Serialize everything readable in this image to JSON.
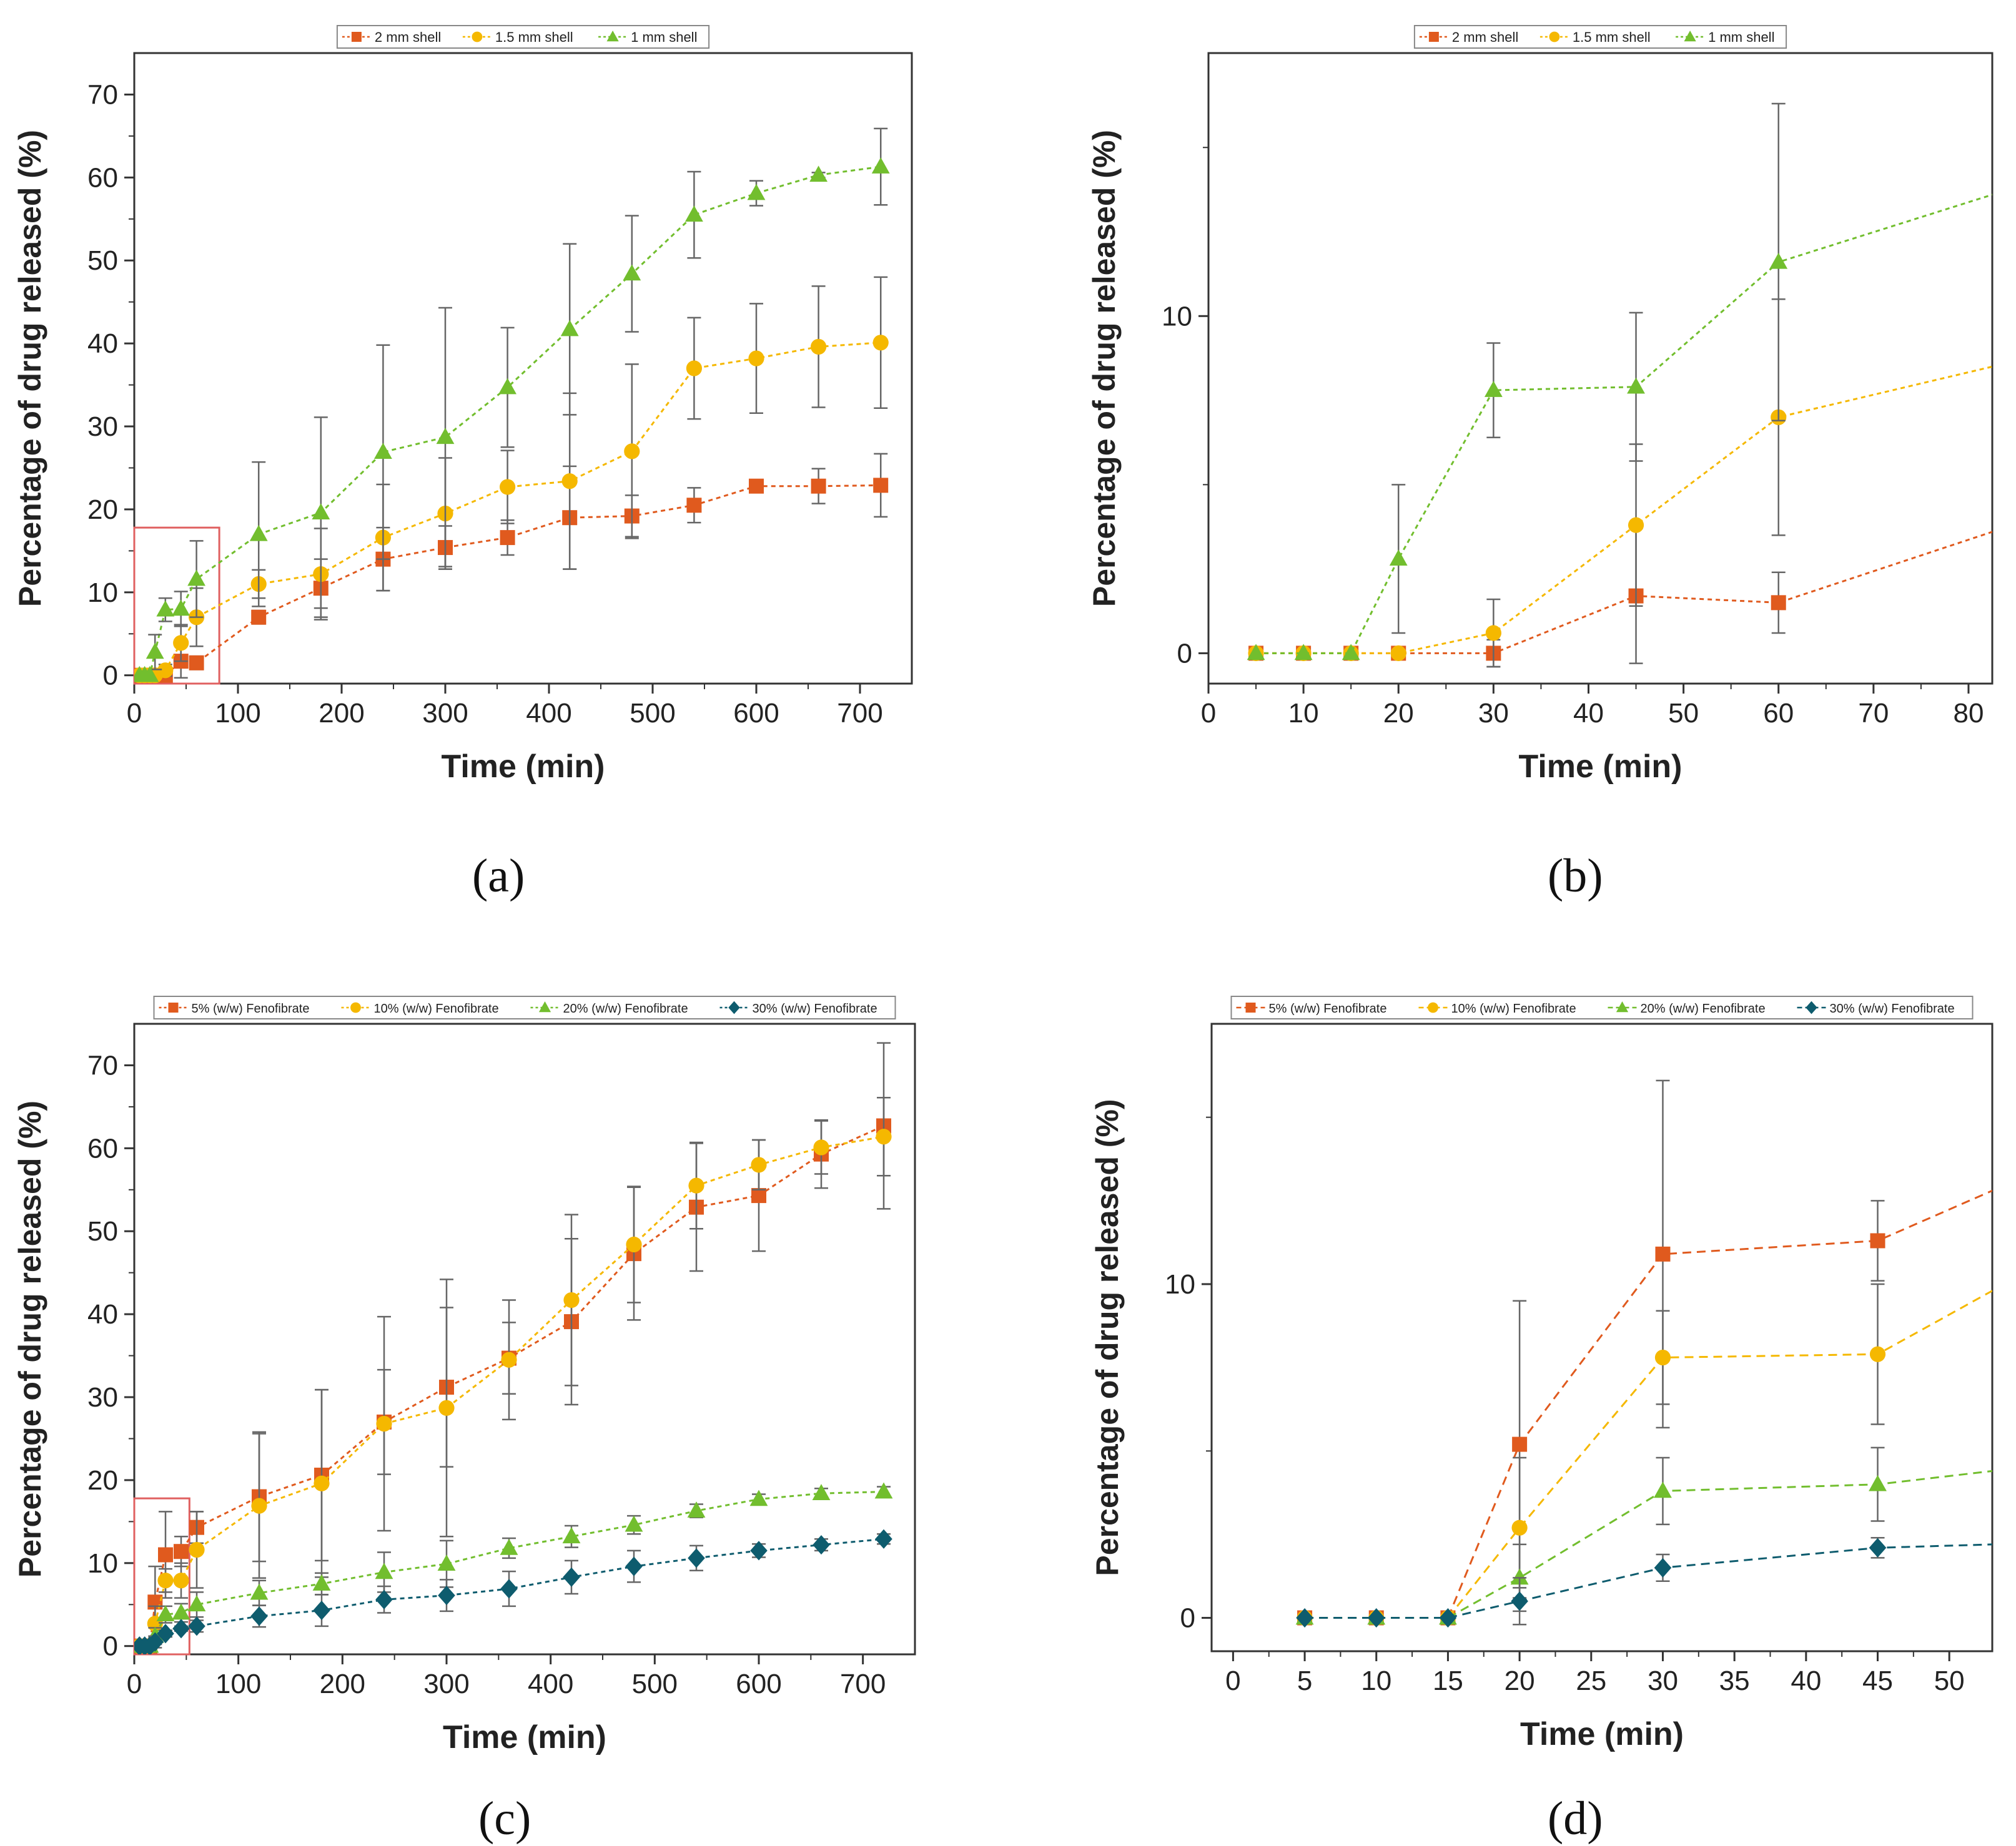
{
  "colors": {
    "orange": "#e05a1e",
    "yellow": "#f5b800",
    "green": "#72be2e",
    "teal": "#0e5c6e",
    "axis": "#333333",
    "error_bar": "#666666",
    "inset_box": "#e06060"
  },
  "chart_data": [
    {
      "id": "a",
      "type": "line",
      "caption": "(a)",
      "xlabel": "Time (min)",
      "ylabel": "Percentage of drug released (%)",
      "xlim": [
        0,
        750
      ],
      "ylim": [
        -1,
        75
      ],
      "xticks": [
        0,
        100,
        200,
        300,
        400,
        500,
        600,
        700
      ],
      "yticks": [
        0,
        10,
        20,
        30,
        40,
        50,
        60,
        70
      ],
      "legend_position": "top-center",
      "inset_box": {
        "x": [
          0,
          82
        ],
        "y": [
          -1,
          17.8
        ]
      },
      "series": [
        {
          "name": "2 mm shell",
          "color_key": "orange",
          "marker": "square",
          "dash": "dotted",
          "x": [
            5,
            10,
            15,
            20,
            30,
            45,
            60,
            120,
            180,
            240,
            300,
            360,
            420,
            480,
            540,
            600,
            660,
            720
          ],
          "y": [
            0,
            0,
            0,
            0,
            0,
            1.7,
            1.5,
            7.0,
            10.5,
            14.0,
            15.4,
            16.6,
            19.0,
            19.2,
            20.5,
            22.8,
            22.8,
            22.9
          ],
          "err": [
            0,
            0,
            0,
            0,
            0.4,
            2.0,
            0.8,
            0.8,
            3.5,
            3.8,
            2.6,
            2.1,
            6.2,
            2.5,
            2.1,
            0.5,
            2.1,
            3.8
          ]
        },
        {
          "name": "1.5 mm shell",
          "color_key": "yellow",
          "marker": "circle",
          "dash": "dotted",
          "x": [
            5,
            10,
            15,
            20,
            30,
            45,
            60,
            120,
            180,
            240,
            300,
            360,
            420,
            480,
            540,
            600,
            660,
            720
          ],
          "y": [
            0,
            0,
            0,
            0,
            0.6,
            3.9,
            7.0,
            11.0,
            12.2,
            16.6,
            19.5,
            22.7,
            23.4,
            27.0,
            37.0,
            38.2,
            39.6,
            40.1
          ],
          "err": [
            0,
            0,
            0,
            0,
            0.7,
            2.2,
            3.5,
            1.7,
            5.5,
            6.4,
            6.7,
            4.4,
            10.6,
            10.5,
            6.1,
            6.6,
            7.3,
            7.9
          ]
        },
        {
          "name": "1 mm shell",
          "color_key": "green",
          "marker": "triangle",
          "dash": "dotted",
          "x": [
            5,
            10,
            15,
            20,
            30,
            45,
            60,
            120,
            180,
            240,
            300,
            360,
            420,
            480,
            540,
            600,
            660,
            720
          ],
          "y": [
            0,
            0,
            0,
            2.8,
            7.9,
            8.0,
            11.6,
            17.0,
            19.6,
            26.9,
            28.7,
            34.7,
            41.7,
            48.4,
            55.5,
            58.1,
            60.3,
            61.3
          ],
          "err": [
            0,
            0,
            0,
            2.1,
            1.4,
            2.1,
            4.6,
            8.7,
            11.5,
            12.9,
            15.6,
            7.2,
            10.3,
            7.0,
            5.2,
            1.5,
            0.3,
            4.6
          ]
        }
      ]
    },
    {
      "id": "b",
      "type": "line",
      "caption": "(b)",
      "xlabel": "Time (min)",
      "ylabel": "Percentage of drug released (%)",
      "xlim": [
        0,
        82.5
      ],
      "ylim": [
        -0.9,
        17.8
      ],
      "xticks": [
        0,
        10,
        20,
        30,
        40,
        50,
        60,
        70,
        80
      ],
      "yticks": [
        0,
        10
      ],
      "legend_position": "top-center",
      "series": [
        {
          "name": "2 mm shell",
          "color_key": "orange",
          "marker": "square",
          "dash": "dotted",
          "x": [
            5,
            10,
            15,
            20,
            30,
            45,
            60
          ],
          "y": [
            0,
            0,
            0,
            0,
            0,
            1.7,
            1.5
          ],
          "err": [
            0,
            0,
            0,
            0,
            0.4,
            2.0,
            0.9
          ],
          "trend_end": [
            82.5,
            3.6
          ]
        },
        {
          "name": "1.5 mm shell",
          "color_key": "yellow",
          "marker": "circle",
          "dash": "dotted",
          "x": [
            5,
            10,
            15,
            20,
            30,
            45,
            60
          ],
          "y": [
            0,
            0,
            0,
            0,
            0.6,
            3.8,
            7.0
          ],
          "err": [
            0,
            0,
            0,
            0,
            1.0,
            2.4,
            3.5
          ],
          "trend_end": [
            82.5,
            8.5
          ]
        },
        {
          "name": "1 mm shell",
          "color_key": "green",
          "marker": "triangle",
          "dash": "dotted",
          "x": [
            5,
            10,
            15,
            20,
            30,
            45,
            60
          ],
          "y": [
            0,
            0,
            0,
            2.8,
            7.8,
            7.9,
            11.6
          ],
          "err": [
            0,
            0,
            0,
            2.2,
            1.4,
            2.2,
            4.7
          ],
          "trend_end": [
            82.5,
            13.6
          ]
        }
      ]
    },
    {
      "id": "c",
      "type": "line",
      "caption": "(c)",
      "xlabel": "Time (min)",
      "ylabel": "Percentage of drug released (%)",
      "xlim": [
        0,
        750
      ],
      "ylim": [
        -1,
        75
      ],
      "xticks": [
        0,
        100,
        200,
        300,
        400,
        500,
        600,
        700
      ],
      "yticks": [
        0,
        10,
        20,
        30,
        40,
        50,
        60,
        70
      ],
      "legend_position": "top-center",
      "inset_box": {
        "x": [
          0,
          53
        ],
        "y": [
          -1,
          17.8
        ]
      },
      "series": [
        {
          "name": "5% (w/w) Fenofibrate",
          "color_key": "orange",
          "marker": "square",
          "dash": "dotted",
          "x": [
            5,
            10,
            15,
            20,
            30,
            45,
            60,
            120,
            180,
            240,
            300,
            360,
            420,
            480,
            540,
            600,
            660,
            720
          ],
          "y": [
            0,
            0,
            0,
            5.3,
            11.0,
            11.4,
            14.3,
            18.0,
            20.6,
            27.0,
            31.2,
            34.7,
            39.1,
            47.3,
            52.9,
            54.3,
            59.3,
            62.7
          ],
          "err": [
            0,
            0,
            0,
            4.3,
            5.2,
            1.8,
            1.9,
            7.8,
            10.3,
            6.3,
            9.6,
            4.3,
            10.0,
            8.0,
            7.7,
            6.7,
            4.1,
            10.0
          ]
        },
        {
          "name": "10% (w/w) Fenofibrate",
          "color_key": "yellow",
          "marker": "circle",
          "dash": "dotted",
          "x": [
            5,
            10,
            15,
            20,
            30,
            45,
            60,
            120,
            180,
            240,
            300,
            360,
            420,
            480,
            540,
            600,
            660,
            720
          ],
          "y": [
            0,
            0,
            0,
            2.7,
            7.9,
            7.9,
            11.6,
            16.9,
            19.6,
            26.8,
            28.7,
            34.5,
            41.7,
            48.4,
            55.5,
            58.0,
            60.1,
            61.4
          ],
          "err": [
            0,
            0,
            0,
            2.1,
            1.4,
            2.1,
            4.6,
            8.7,
            11.3,
            12.9,
            15.5,
            7.2,
            10.3,
            7.0,
            5.2,
            3.0,
            3.2,
            4.7
          ]
        },
        {
          "name": "20% (w/w) Fenofibrate",
          "color_key": "green",
          "marker": "triangle",
          "dash": "dotted",
          "x": [
            5,
            10,
            15,
            20,
            30,
            45,
            60,
            120,
            180,
            240,
            300,
            360,
            420,
            480,
            540,
            600,
            660,
            720
          ],
          "y": [
            0,
            0,
            0,
            1.2,
            3.8,
            4.0,
            5.0,
            6.4,
            7.5,
            8.9,
            9.9,
            11.8,
            13.2,
            14.6,
            16.3,
            17.7,
            18.4,
            18.6
          ],
          "err": [
            0,
            0,
            0,
            1.0,
            1.0,
            1.1,
            1.5,
            1.5,
            1.3,
            2.4,
            2.8,
            1.2,
            1.3,
            1.1,
            0.8,
            0.6,
            0.6,
            0.6
          ]
        },
        {
          "name": "30% (w/w) Fenofibrate",
          "color_key": "teal",
          "marker": "diamond",
          "dash": "dotted",
          "x": [
            5,
            10,
            15,
            20,
            30,
            45,
            60,
            120,
            180,
            240,
            300,
            360,
            420,
            480,
            540,
            600,
            660,
            720
          ],
          "y": [
            0,
            0,
            0,
            0.5,
            1.5,
            2.1,
            2.4,
            3.6,
            4.3,
            5.6,
            6.1,
            6.9,
            8.3,
            9.6,
            10.6,
            11.5,
            12.2,
            12.9
          ],
          "err": [
            0,
            0,
            0,
            0.7,
            0.4,
            0.3,
            0.7,
            1.3,
            1.9,
            1.6,
            1.9,
            2.1,
            2.0,
            1.9,
            1.5,
            0.8,
            0.7,
            0.6
          ]
        }
      ]
    },
    {
      "id": "d",
      "type": "line",
      "caption": "(d)",
      "xlabel": "Time (min)",
      "ylabel": "Percentage of drug released (%)",
      "xlim": [
        -1.5,
        53
      ],
      "ylim": [
        -1,
        17.8
      ],
      "xticks": [
        0,
        5,
        10,
        15,
        20,
        25,
        30,
        35,
        40,
        45,
        50
      ],
      "yticks": [
        0,
        10
      ],
      "legend_position": "top-center",
      "series": [
        {
          "name": "5% (w/w) Fenofibrate",
          "color_key": "orange",
          "marker": "square",
          "dash": "dashed",
          "x": [
            5,
            10,
            15,
            20,
            30,
            45
          ],
          "y": [
            0,
            0,
            0,
            5.2,
            10.9,
            11.3
          ],
          "err": [
            0,
            0,
            0,
            4.3,
            5.2,
            1.2
          ],
          "trend_end": [
            53,
            12.8
          ]
        },
        {
          "name": "10% (w/w) Fenofibrate",
          "color_key": "yellow",
          "marker": "circle",
          "dash": "dashed",
          "x": [
            5,
            10,
            15,
            20,
            30,
            45
          ],
          "y": [
            0,
            0,
            0,
            2.7,
            7.8,
            7.9
          ],
          "err": [
            0,
            0,
            0,
            2.1,
            1.4,
            2.1
          ],
          "trend_end": [
            53,
            9.8
          ]
        },
        {
          "name": "20% (w/w) Fenofibrate",
          "color_key": "green",
          "marker": "triangle",
          "dash": "dashed",
          "x": [
            5,
            10,
            15,
            20,
            30,
            45
          ],
          "y": [
            0,
            0,
            0,
            1.2,
            3.8,
            4.0
          ],
          "err": [
            0,
            0,
            0,
            1.0,
            1.0,
            1.1
          ],
          "trend_end": [
            53,
            4.4
          ]
        },
        {
          "name": "30% (w/w) Fenofibrate",
          "color_key": "teal",
          "marker": "diamond",
          "dash": "dashed",
          "x": [
            5,
            10,
            15,
            20,
            30,
            45
          ],
          "y": [
            0,
            0,
            0,
            0.5,
            1.5,
            2.1
          ],
          "err": [
            0,
            0,
            0,
            0.7,
            0.4,
            0.3
          ],
          "trend_end": [
            53,
            2.2
          ]
        }
      ]
    }
  ]
}
